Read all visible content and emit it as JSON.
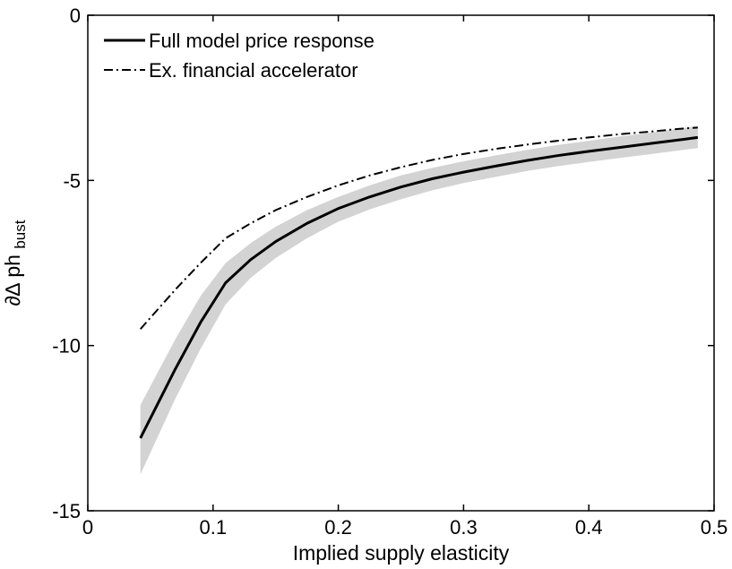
{
  "chart_data": {
    "type": "line",
    "title": "",
    "xlabel": "Implied supply elasticity",
    "ylabel": {
      "main": "∂∆ ph",
      "subscript": "bust"
    },
    "xlim": [
      0,
      0.5
    ],
    "ylim": [
      -15,
      0
    ],
    "xticks": [
      "0",
      "0.1",
      "0.2",
      "0.3",
      "0.4",
      "0.5"
    ],
    "yticks": [
      "0",
      "-5",
      "-10",
      "-15"
    ],
    "grid": false,
    "legend_position": "top-left",
    "x": [
      0.042,
      0.07,
      0.09,
      0.11,
      0.13,
      0.15,
      0.175,
      0.2,
      0.225,
      0.25,
      0.275,
      0.3,
      0.325,
      0.35,
      0.375,
      0.4,
      0.425,
      0.45,
      0.475,
      0.487
    ],
    "series": [
      {
        "name": "Full model price response",
        "style": "solid",
        "color": "#000000",
        "values": [
          -12.8,
          -10.7,
          -9.3,
          -8.1,
          -7.4,
          -6.85,
          -6.3,
          -5.85,
          -5.5,
          -5.2,
          -4.95,
          -4.75,
          -4.57,
          -4.4,
          -4.25,
          -4.12,
          -4.0,
          -3.88,
          -3.76,
          -3.7
        ]
      },
      {
        "name": "Ex. financial accelerator",
        "style": "dash-dot",
        "color": "#000000",
        "values": [
          -9.5,
          -8.3,
          -7.5,
          -6.75,
          -6.3,
          -5.9,
          -5.5,
          -5.15,
          -4.85,
          -4.6,
          -4.38,
          -4.2,
          -4.05,
          -3.92,
          -3.8,
          -3.7,
          -3.6,
          -3.52,
          -3.43,
          -3.4
        ]
      }
    ],
    "band": {
      "color": "#d3d3d3",
      "upper": [
        -11.8,
        -9.8,
        -8.5,
        -7.5,
        -6.9,
        -6.4,
        -5.9,
        -5.5,
        -5.15,
        -4.85,
        -4.62,
        -4.42,
        -4.25,
        -4.08,
        -3.93,
        -3.8,
        -3.67,
        -3.55,
        -3.42,
        -3.35
      ],
      "lower": [
        -13.9,
        -11.6,
        -10.1,
        -8.75,
        -7.95,
        -7.35,
        -6.75,
        -6.25,
        -5.88,
        -5.57,
        -5.3,
        -5.08,
        -4.9,
        -4.72,
        -4.57,
        -4.44,
        -4.32,
        -4.2,
        -4.08,
        -4.02
      ]
    }
  }
}
